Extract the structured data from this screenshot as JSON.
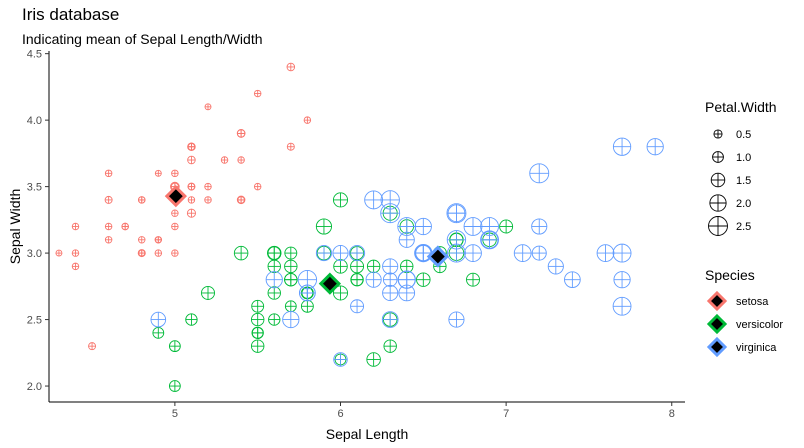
{
  "chart_data": {
    "type": "scatter",
    "title": "Iris database",
    "subtitle": "Indicating mean of Sepal Length/Width",
    "xlabel": "Sepal Length",
    "ylabel": "Sepal Width",
    "xlim": [
      4.24,
      8.08
    ],
    "ylim": [
      1.88,
      4.52
    ],
    "x_ticks": [
      5,
      6,
      7,
      8
    ],
    "y_ticks": [
      2.0,
      2.5,
      3.0,
      3.5,
      4.0,
      4.5
    ],
    "x_tick_labels": [
      "5",
      "6",
      "7",
      "8"
    ],
    "y_tick_labels": [
      "2.0",
      "2.5",
      "3.0",
      "3.5",
      "4.0",
      "4.5"
    ],
    "grid": false,
    "size_legend": {
      "title": "Petal.Width",
      "values": [
        0.5,
        1.0,
        1.5,
        2.0,
        2.5
      ],
      "labels": [
        "0.5",
        "1.0",
        "1.5",
        "2.0",
        "2.5"
      ]
    },
    "color_legend": {
      "title": "Species",
      "labels": [
        "setosa",
        "versicolor",
        "virginica"
      ]
    },
    "colors": {
      "setosa": "#F8766D",
      "versicolor": "#00BA38",
      "virginica": "#619CFF"
    },
    "series": [
      {
        "name": "setosa",
        "points": [
          [
            5.1,
            3.5,
            0.2
          ],
          [
            4.9,
            3.0,
            0.2
          ],
          [
            4.7,
            3.2,
            0.2
          ],
          [
            4.6,
            3.1,
            0.2
          ],
          [
            5.0,
            3.6,
            0.2
          ],
          [
            5.4,
            3.9,
            0.4
          ],
          [
            4.6,
            3.4,
            0.3
          ],
          [
            5.0,
            3.4,
            0.2
          ],
          [
            4.4,
            2.9,
            0.2
          ],
          [
            4.9,
            3.1,
            0.1
          ],
          [
            5.4,
            3.7,
            0.2
          ],
          [
            4.8,
            3.4,
            0.2
          ],
          [
            4.8,
            3.0,
            0.1
          ],
          [
            4.3,
            3.0,
            0.1
          ],
          [
            5.8,
            4.0,
            0.2
          ],
          [
            5.7,
            4.4,
            0.4
          ],
          [
            5.4,
            3.9,
            0.4
          ],
          [
            5.1,
            3.5,
            0.3
          ],
          [
            5.7,
            3.8,
            0.3
          ],
          [
            5.1,
            3.8,
            0.3
          ],
          [
            5.4,
            3.4,
            0.2
          ],
          [
            5.1,
            3.7,
            0.4
          ],
          [
            4.6,
            3.6,
            0.2
          ],
          [
            5.1,
            3.3,
            0.5
          ],
          [
            4.8,
            3.4,
            0.2
          ],
          [
            5.0,
            3.0,
            0.2
          ],
          [
            5.0,
            3.4,
            0.4
          ],
          [
            5.2,
            3.5,
            0.2
          ],
          [
            5.2,
            3.4,
            0.2
          ],
          [
            4.7,
            3.2,
            0.2
          ],
          [
            4.8,
            3.1,
            0.2
          ],
          [
            5.4,
            3.4,
            0.4
          ],
          [
            5.2,
            4.1,
            0.1
          ],
          [
            5.5,
            4.2,
            0.2
          ],
          [
            4.9,
            3.1,
            0.2
          ],
          [
            5.0,
            3.2,
            0.2
          ],
          [
            5.5,
            3.5,
            0.2
          ],
          [
            4.9,
            3.6,
            0.1
          ],
          [
            4.4,
            3.0,
            0.2
          ],
          [
            5.1,
            3.4,
            0.2
          ],
          [
            5.0,
            3.5,
            0.3
          ],
          [
            4.5,
            2.3,
            0.3
          ],
          [
            4.4,
            3.2,
            0.2
          ],
          [
            5.0,
            3.5,
            0.6
          ],
          [
            5.1,
            3.8,
            0.4
          ],
          [
            4.8,
            3.0,
            0.3
          ],
          [
            5.1,
            3.8,
            0.2
          ],
          [
            4.6,
            3.2,
            0.2
          ],
          [
            5.3,
            3.7,
            0.2
          ],
          [
            5.0,
            3.3,
            0.2
          ]
        ],
        "mean": [
          5.006,
          3.428
        ]
      },
      {
        "name": "versicolor",
        "points": [
          [
            7.0,
            3.2,
            1.4
          ],
          [
            6.4,
            3.2,
            1.5
          ],
          [
            6.9,
            3.1,
            1.5
          ],
          [
            5.5,
            2.3,
            1.3
          ],
          [
            6.5,
            2.8,
            1.5
          ],
          [
            5.7,
            2.8,
            1.3
          ],
          [
            6.3,
            3.3,
            1.6
          ],
          [
            4.9,
            2.4,
            1.0
          ],
          [
            6.6,
            2.9,
            1.3
          ],
          [
            5.2,
            2.7,
            1.4
          ],
          [
            5.0,
            2.0,
            1.0
          ],
          [
            5.9,
            3.0,
            1.5
          ],
          [
            6.0,
            2.2,
            1.0
          ],
          [
            6.1,
            2.9,
            1.4
          ],
          [
            5.6,
            2.9,
            1.3
          ],
          [
            6.7,
            3.1,
            1.4
          ],
          [
            5.6,
            3.0,
            1.5
          ],
          [
            5.8,
            2.7,
            1.0
          ],
          [
            6.2,
            2.2,
            1.5
          ],
          [
            5.6,
            2.5,
            1.1
          ],
          [
            5.9,
            3.2,
            1.8
          ],
          [
            6.1,
            2.8,
            1.3
          ],
          [
            6.3,
            2.5,
            1.5
          ],
          [
            6.1,
            2.8,
            1.2
          ],
          [
            6.4,
            2.9,
            1.3
          ],
          [
            6.6,
            3.0,
            1.4
          ],
          [
            6.8,
            2.8,
            1.4
          ],
          [
            6.7,
            3.0,
            1.7
          ],
          [
            6.0,
            2.9,
            1.5
          ],
          [
            5.7,
            2.6,
            1.0
          ],
          [
            5.5,
            2.4,
            1.1
          ],
          [
            5.5,
            2.4,
            1.0
          ],
          [
            5.8,
            2.7,
            1.2
          ],
          [
            6.0,
            2.7,
            1.6
          ],
          [
            5.4,
            3.0,
            1.5
          ],
          [
            6.0,
            3.4,
            1.6
          ],
          [
            6.7,
            3.1,
            1.5
          ],
          [
            6.3,
            2.3,
            1.3
          ],
          [
            5.6,
            3.0,
            1.3
          ],
          [
            5.5,
            2.5,
            1.3
          ],
          [
            5.5,
            2.6,
            1.2
          ],
          [
            6.1,
            3.0,
            1.4
          ],
          [
            5.8,
            2.6,
            1.2
          ],
          [
            5.0,
            2.3,
            1.0
          ],
          [
            5.6,
            2.7,
            1.3
          ],
          [
            5.7,
            3.0,
            1.2
          ],
          [
            5.7,
            2.9,
            1.3
          ],
          [
            6.2,
            2.9,
            1.3
          ],
          [
            5.1,
            2.5,
            1.1
          ],
          [
            5.7,
            2.8,
            1.3
          ]
        ],
        "mean": [
          5.936,
          2.77
        ]
      },
      {
        "name": "virginica",
        "points": [
          [
            6.3,
            3.3,
            2.5
          ],
          [
            5.8,
            2.7,
            1.9
          ],
          [
            7.1,
            3.0,
            2.1
          ],
          [
            6.3,
            2.9,
            1.8
          ],
          [
            6.5,
            3.0,
            2.2
          ],
          [
            7.6,
            3.0,
            2.1
          ],
          [
            4.9,
            2.5,
            1.7
          ],
          [
            7.3,
            2.9,
            1.8
          ],
          [
            6.7,
            2.5,
            1.8
          ],
          [
            7.2,
            3.6,
            2.5
          ],
          [
            6.5,
            3.2,
            2.0
          ],
          [
            6.4,
            2.7,
            1.9
          ],
          [
            6.8,
            3.0,
            2.1
          ],
          [
            5.7,
            2.5,
            2.0
          ],
          [
            5.8,
            2.8,
            2.4
          ],
          [
            6.4,
            3.2,
            2.3
          ],
          [
            6.5,
            3.0,
            1.8
          ],
          [
            7.7,
            3.8,
            2.2
          ],
          [
            7.7,
            2.6,
            2.3
          ],
          [
            6.0,
            2.2,
            1.5
          ],
          [
            6.9,
            3.2,
            2.3
          ],
          [
            5.6,
            2.8,
            2.0
          ],
          [
            7.7,
            2.8,
            2.0
          ],
          [
            6.3,
            2.7,
            1.8
          ],
          [
            6.7,
            3.3,
            2.1
          ],
          [
            7.2,
            3.2,
            1.8
          ],
          [
            6.2,
            2.8,
            1.8
          ],
          [
            6.1,
            3.0,
            1.8
          ],
          [
            6.4,
            2.8,
            2.1
          ],
          [
            7.2,
            3.0,
            1.6
          ],
          [
            7.4,
            2.8,
            1.9
          ],
          [
            7.9,
            3.8,
            2.0
          ],
          [
            6.4,
            2.8,
            2.2
          ],
          [
            6.3,
            2.8,
            1.5
          ],
          [
            6.1,
            2.6,
            1.4
          ],
          [
            7.7,
            3.0,
            2.3
          ],
          [
            6.3,
            3.4,
            2.4
          ],
          [
            6.4,
            3.1,
            1.8
          ],
          [
            6.0,
            3.0,
            1.8
          ],
          [
            6.9,
            3.1,
            2.1
          ],
          [
            6.7,
            3.1,
            2.4
          ],
          [
            6.9,
            3.1,
            2.3
          ],
          [
            5.8,
            2.7,
            1.9
          ],
          [
            6.8,
            3.2,
            2.3
          ],
          [
            6.7,
            3.3,
            2.5
          ],
          [
            6.7,
            3.0,
            2.3
          ],
          [
            6.3,
            2.5,
            1.9
          ],
          [
            6.5,
            3.0,
            2.0
          ],
          [
            6.2,
            3.4,
            2.3
          ],
          [
            5.9,
            3.0,
            1.8
          ]
        ],
        "mean": [
          6.588,
          2.974
        ]
      }
    ]
  }
}
